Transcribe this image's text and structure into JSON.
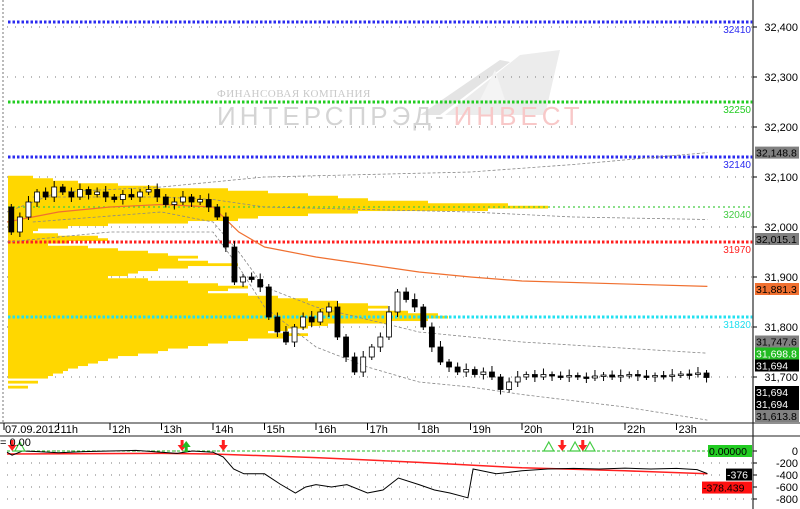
{
  "watermark": {
    "line1": "ФИНАНСОВАЯ КОМПАНИЯ",
    "line2a": "ИНТЕРСПРЭД-",
    "line2b": "ИНВЕСТ"
  },
  "indicator_label": "= 0.00",
  "chart_data": [
    {
      "type": "candlestick",
      "date_label": "07.09.2012",
      "x_tick_labels": [
        "11h",
        "12h",
        "13h",
        "14h",
        "15h",
        "16h",
        "17h",
        "18h",
        "19h",
        "20h",
        "21h",
        "22h",
        "23h"
      ],
      "y_tick_labels": [
        "32,400",
        "32,300",
        "32,200",
        "32,100",
        "32,000",
        "31,900",
        "31,800",
        "31,700"
      ],
      "ylim": [
        31600,
        32450
      ],
      "grid": "dotted",
      "candle_interval_minutes": 10,
      "start_time": "10:00",
      "first_open": 32040,
      "closes": [
        31990,
        32020,
        32050,
        32070,
        32060,
        32080,
        32070,
        32060,
        32075,
        32065,
        32070,
        32060,
        32055,
        32065,
        32060,
        32070,
        32075,
        32060,
        32045,
        32050,
        32060,
        32050,
        32055,
        32040,
        32020,
        31960,
        31890,
        31900,
        31895,
        31880,
        31820,
        31790,
        31770,
        31800,
        31820,
        31810,
        31830,
        31840,
        31780,
        31740,
        31710,
        31740,
        31760,
        31780,
        31830,
        31870,
        31855,
        31840,
        31800,
        31760,
        31730,
        31720,
        31710,
        31715,
        31705,
        31710,
        31700,
        31675,
        31690,
        31700,
        31705,
        31700,
        31705,
        31702,
        31700,
        31703,
        31700,
        31698,
        31702,
        31704,
        31700,
        31703,
        31705,
        31702,
        31700,
        31703,
        31701,
        31704,
        31706,
        31705,
        31708,
        31699
      ],
      "levels": [
        {
          "value": 32410,
          "label": "32410",
          "color": "#2a2af0",
          "style": "thick"
        },
        {
          "value": 32250,
          "label": "32250",
          "color": "#22cc22",
          "style": "thick"
        },
        {
          "value": 32140,
          "label": "32140",
          "color": "#2a2af0",
          "style": "thick"
        },
        {
          "value": 32040,
          "label": "32040",
          "color": "#44cc44",
          "style": "thin"
        },
        {
          "value": 31970,
          "label": "31970",
          "color": "#ff2020",
          "style": "thick"
        },
        {
          "value": 31820,
          "label": "31820",
          "color": "#22e0f0",
          "style": "thick"
        }
      ],
      "lines": [
        {
          "id": "vwap",
          "color": "#f07030",
          "dashed": false,
          "points": [
            [
              10,
              32010
            ],
            [
              11,
              32030
            ],
            [
              12,
              32040
            ],
            [
              13,
              32045
            ],
            [
              14,
              32040
            ],
            [
              14.5,
              31990
            ],
            [
              15,
              31960
            ],
            [
              16,
              31940
            ],
            [
              17,
              31925
            ],
            [
              18,
              31910
            ],
            [
              19,
              31900
            ],
            [
              20,
              31892
            ],
            [
              23.6,
              31881.3
            ]
          ]
        },
        {
          "id": "upper-band",
          "color": "#888888",
          "dashed": true,
          "points": [
            [
              10,
              32030
            ],
            [
              11,
              32070
            ],
            [
              13,
              32080
            ],
            [
              14,
              32090
            ],
            [
              15,
              32100
            ],
            [
              17,
              32105
            ],
            [
              19,
              32110
            ],
            [
              21,
              32125
            ],
            [
              23.6,
              32148.8
            ]
          ]
        },
        {
          "id": "upper-inner-band",
          "color": "#888888",
          "dashed": true,
          "points": [
            [
              10.5,
              32060
            ],
            [
              13,
              32060
            ],
            [
              14,
              32055
            ],
            [
              15,
              32040
            ],
            [
              17,
              32035
            ],
            [
              19,
              32030
            ],
            [
              21,
              32020
            ],
            [
              23.6,
              32015.1
            ]
          ]
        },
        {
          "id": "lower-inner-band",
          "color": "#888888",
          "dashed": true,
          "points": [
            [
              10.5,
              32010
            ],
            [
              13,
              32030
            ],
            [
              14,
              32010
            ],
            [
              14.5,
              31950
            ],
            [
              15,
              31880
            ],
            [
              16,
              31840
            ],
            [
              18,
              31790
            ],
            [
              20,
              31770
            ],
            [
              23.6,
              31747.6
            ]
          ]
        },
        {
          "id": "lower-band",
          "color": "#888888",
          "dashed": true,
          "points": [
            [
              10,
              31970
            ],
            [
              12,
              31990
            ],
            [
              14,
              31990
            ],
            [
              14.5,
              31920
            ],
            [
              15,
              31840
            ],
            [
              16,
              31760
            ],
            [
              17,
              31720
            ],
            [
              18,
              31690
            ],
            [
              19,
              31680
            ],
            [
              20,
              31665
            ],
            [
              22,
              31640
            ],
            [
              23.6,
              31613.8
            ]
          ]
        }
      ],
      "volume_profile": {
        "color": "#ffd700",
        "price_step": 5,
        "bins": [
          [
            32100,
            25
          ],
          [
            32095,
            45
          ],
          [
            32090,
            70
          ],
          [
            32085,
            110
          ],
          [
            32080,
            150
          ],
          [
            32075,
            220
          ],
          [
            32070,
            260
          ],
          [
            32065,
            300
          ],
          [
            32060,
            330
          ],
          [
            32055,
            360
          ],
          [
            32050,
            420
          ],
          [
            32045,
            500
          ],
          [
            32040,
            540
          ],
          [
            32035,
            480
          ],
          [
            32030,
            350
          ],
          [
            32025,
            300
          ],
          [
            32020,
            250
          ],
          [
            32015,
            230
          ],
          [
            32010,
            180
          ],
          [
            32005,
            100
          ],
          [
            32000,
            60
          ],
          [
            31995,
            30
          ],
          [
            31990,
            25
          ],
          [
            31985,
            50
          ],
          [
            31980,
            90
          ],
          [
            31975,
            100
          ],
          [
            31970,
            60
          ],
          [
            31965,
            40
          ],
          [
            31960,
            80
          ],
          [
            31955,
            110
          ],
          [
            31950,
            140
          ],
          [
            31945,
            160
          ],
          [
            31940,
            190
          ],
          [
            31935,
            170
          ],
          [
            31930,
            200
          ],
          [
            31925,
            230
          ],
          [
            31920,
            180
          ],
          [
            31915,
            150
          ],
          [
            31910,
            130
          ],
          [
            31905,
            120
          ],
          [
            31900,
            100
          ],
          [
            31895,
            140
          ],
          [
            31890,
            180
          ],
          [
            31885,
            210
          ],
          [
            31880,
            240
          ],
          [
            31875,
            220
          ],
          [
            31870,
            200
          ],
          [
            31865,
            240
          ],
          [
            31860,
            270
          ],
          [
            31855,
            300
          ],
          [
            31850,
            330
          ],
          [
            31845,
            360
          ],
          [
            31840,
            380
          ],
          [
            31835,
            360
          ],
          [
            31830,
            400
          ],
          [
            31825,
            430
          ],
          [
            31820,
            440
          ],
          [
            31815,
            420
          ],
          [
            31810,
            380
          ],
          [
            31805,
            320
          ],
          [
            31800,
            300
          ],
          [
            31795,
            280
          ],
          [
            31790,
            260
          ],
          [
            31785,
            300
          ],
          [
            31780,
            280
          ],
          [
            31775,
            240
          ],
          [
            31770,
            220
          ],
          [
            31765,
            200
          ],
          [
            31760,
            180
          ],
          [
            31755,
            160
          ],
          [
            31750,
            150
          ],
          [
            31745,
            130
          ],
          [
            31740,
            110
          ],
          [
            31735,
            100
          ],
          [
            31730,
            90
          ],
          [
            31725,
            80
          ],
          [
            31720,
            70
          ],
          [
            31715,
            60
          ],
          [
            31710,
            55
          ],
          [
            31705,
            45
          ],
          [
            31700,
            40
          ],
          [
            31690,
            30
          ],
          [
            31680,
            20
          ]
        ]
      },
      "price_boxes": [
        {
          "label": "32,148.8",
          "value": 32148.8,
          "bg": "#808080",
          "fg": "#000000"
        },
        {
          "label": "32,015.1",
          "value": 32015.1,
          "bg": "#808080",
          "fg": "#000000"
        },
        {
          "label": "31,881.3",
          "value": 31881.3,
          "bg": "#f07030",
          "fg": "#000000"
        },
        {
          "label": "31,747.6",
          "value": 31747.6,
          "bg": "#808080",
          "fg": "#000000"
        },
        {
          "label": "31,698.8",
          "value": 31698.8,
          "bg": "#22bb22",
          "fg": "#ffffff"
        },
        {
          "label": "31,694",
          "value": 31694,
          "bg": "#000000",
          "fg": "#ffffff",
          "stack": 0
        },
        {
          "label": "31,694",
          "value": 31694,
          "bg": "#000000",
          "fg": "#ffffff",
          "stack": 1
        },
        {
          "label": "31,694",
          "value": 31694,
          "bg": "#000000",
          "fg": "#ffffff",
          "stack": 2
        },
        {
          "label": "31,613.8",
          "value": 31613.8,
          "bg": "#808080",
          "fg": "#000000"
        }
      ]
    },
    {
      "type": "line",
      "ylim": [
        -850,
        50
      ],
      "y_tick_labels": [
        "0",
        "-200",
        "-400",
        "-600",
        "-800"
      ],
      "series": [
        {
          "id": "oscillator",
          "color": "#000000",
          "points": [
            [
              10,
              -20
            ],
            [
              10.1,
              -70
            ],
            [
              10.3,
              0
            ],
            [
              10.6,
              -10
            ],
            [
              11,
              -30
            ],
            [
              11.5,
              -10
            ],
            [
              12,
              0
            ],
            [
              12.5,
              10
            ],
            [
              13,
              -20
            ],
            [
              13.3,
              -40
            ],
            [
              13.6,
              0
            ],
            [
              14,
              -20
            ],
            [
              14.2,
              -100
            ],
            [
              14.4,
              -300
            ],
            [
              14.6,
              -380
            ],
            [
              15,
              -380
            ],
            [
              15.3,
              -550
            ],
            [
              15.6,
              -700
            ],
            [
              15.8,
              -600
            ],
            [
              16,
              -560
            ],
            [
              16.3,
              -600
            ],
            [
              16.6,
              -560
            ],
            [
              17,
              -700
            ],
            [
              17.3,
              -650
            ],
            [
              17.6,
              -450
            ],
            [
              18,
              -560
            ],
            [
              18.3,
              -650
            ],
            [
              18.6,
              -700
            ],
            [
              18.95,
              -780
            ],
            [
              19.05,
              -300
            ],
            [
              19.5,
              -380
            ],
            [
              20,
              -330
            ],
            [
              20.5,
              -300
            ],
            [
              21,
              -290
            ],
            [
              21.5,
              -300
            ],
            [
              22,
              -285
            ],
            [
              22.5,
              -300
            ],
            [
              23,
              -290
            ],
            [
              23.4,
              -310
            ],
            [
              23.6,
              -376
            ]
          ]
        },
        {
          "id": "signal",
          "color": "#ff2020",
          "points": [
            [
              10,
              -50
            ],
            [
              13,
              -40
            ],
            [
              14,
              -50
            ],
            [
              16,
              -110
            ],
            [
              18,
              -190
            ],
            [
              20,
              -280
            ],
            [
              22,
              -330
            ],
            [
              23.6,
              -378.4
            ]
          ]
        }
      ],
      "markers": [
        {
          "time": 10.1,
          "type": "down-arrow",
          "color": "#ff2020"
        },
        {
          "time": 10.25,
          "type": "up-triangle",
          "color": "#44cc44"
        },
        {
          "time": 13.4,
          "type": "down-arrow",
          "color": "#ff2020"
        },
        {
          "time": 13.48,
          "type": "up-arrow",
          "color": "#22bb22"
        },
        {
          "time": 14.2,
          "type": "down-arrow",
          "color": "#ff2020"
        },
        {
          "time": 20.52,
          "type": "up-triangle",
          "color": "#44cc44"
        },
        {
          "time": 20.78,
          "type": "down-arrow",
          "color": "#ff2020"
        },
        {
          "time": 21.03,
          "type": "up-triangle",
          "color": "#44cc44"
        },
        {
          "time": 21.18,
          "type": "down-arrow",
          "color": "#ff2020"
        },
        {
          "time": 21.32,
          "type": "up-triangle",
          "color": "#44cc44"
        }
      ],
      "value_boxes": [
        {
          "label": "0.00000",
          "value": 0,
          "bg": "#22cc22",
          "fg": "#000000"
        },
        {
          "label": "-376",
          "value": -376,
          "bg": "#000000",
          "fg": "#ffffff"
        },
        {
          "label": "-378.439",
          "value": -378.439,
          "bg": "#ff1010",
          "fg": "#000000"
        }
      ]
    }
  ]
}
